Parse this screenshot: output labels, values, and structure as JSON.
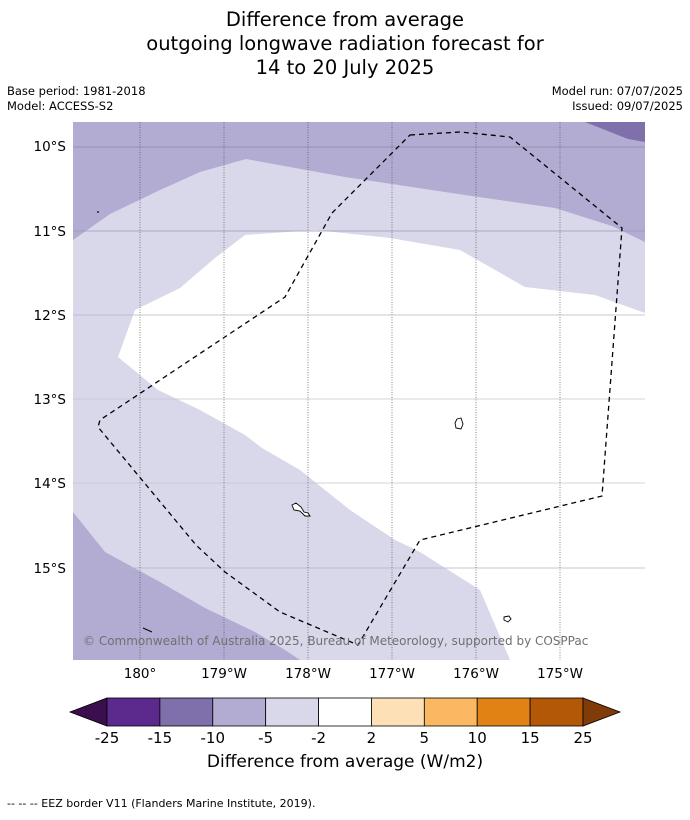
{
  "title": {
    "line1": "Difference from average",
    "line2": "outgoing longwave radiation forecast for",
    "line3": "14 to 20 July 2025"
  },
  "meta": {
    "base_period": "Base period: 1981-2018",
    "model": "Model: ACCESS-S2",
    "model_run": "Model run: 07/07/2025",
    "issued": "Issued: 09/07/2025"
  },
  "map": {
    "lat_labels": [
      "10°S",
      "11°S",
      "12°S",
      "13°S",
      "14°S",
      "15°S"
    ],
    "lon_labels": [
      "180°",
      "179°W",
      "178°W",
      "177°W",
      "176°W",
      "175°W"
    ],
    "copyright": "© Commonwealth of Australia 2025, Bureau of Meteorology, supported by COSPPac",
    "colors": {
      "c_neg15": "#7f6faa",
      "c_neg10": "#b2abd2",
      "c_neg5": "#d8d8ea",
      "c_neutral": "#ffffff"
    }
  },
  "colorbar": {
    "ticks": [
      "-25",
      "-15",
      "-10",
      "-5",
      "-2",
      "2",
      "5",
      "10",
      "15",
      "25"
    ],
    "colors": [
      "#3b0f4f",
      "#5c2a8c",
      "#7f6faa",
      "#b2abd2",
      "#d8d8ea",
      "#ffffff",
      "#fee0b6",
      "#fbb863",
      "#e08214",
      "#b35806",
      "#7f3b08"
    ],
    "label": "Difference from average (W/m2)"
  },
  "legend_note": "--  --  -- EEZ border V11 (Flanders Marine Institute, 2019)."
}
